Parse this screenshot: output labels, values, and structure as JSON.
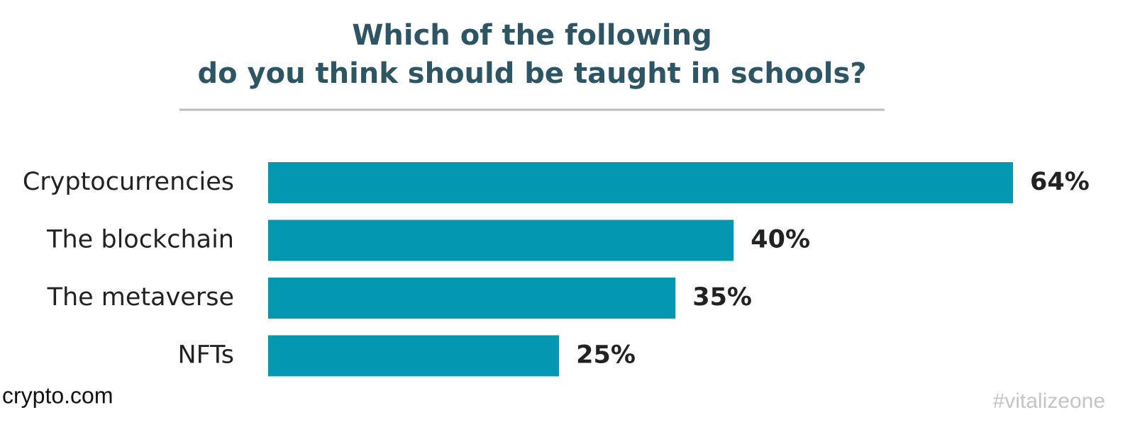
{
  "chart_data": {
    "type": "bar",
    "orientation": "horizontal",
    "title": [
      "Which of the following",
      "do you think should be taught in schools?"
    ],
    "categories": [
      "Cryptocurrencies",
      "The blockchain",
      "The metaverse",
      "NFTs"
    ],
    "values": [
      64,
      40,
      35,
      25
    ],
    "value_labels": [
      "64%",
      "40%",
      "35%",
      "25%"
    ],
    "color": "#0397b1",
    "source": "crypto.com",
    "watermark": "#vitalizeone"
  }
}
